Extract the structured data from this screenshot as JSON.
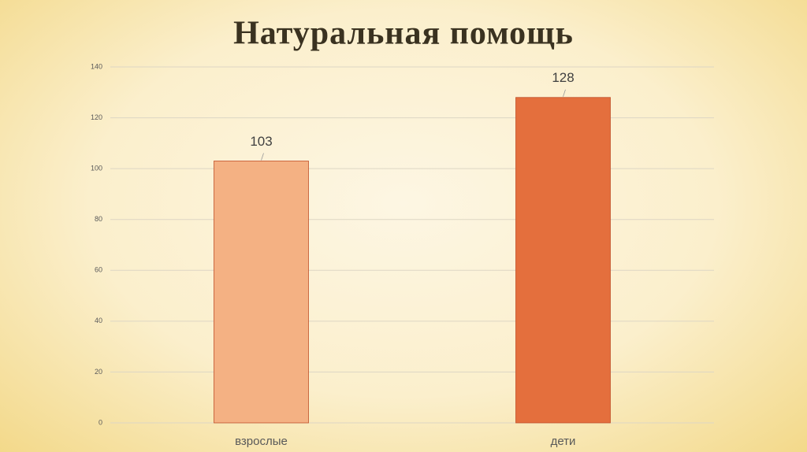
{
  "chart_data": {
    "type": "bar",
    "title": "Натуральная помощь",
    "categories": [
      "взрослые",
      "дети"
    ],
    "values": [
      103,
      128
    ],
    "colors": [
      "#f4b183",
      "#e46f3d"
    ],
    "ylim": [
      0,
      140
    ],
    "yticks": [
      0,
      20,
      40,
      60,
      80,
      100,
      120,
      140
    ],
    "grid": true
  }
}
